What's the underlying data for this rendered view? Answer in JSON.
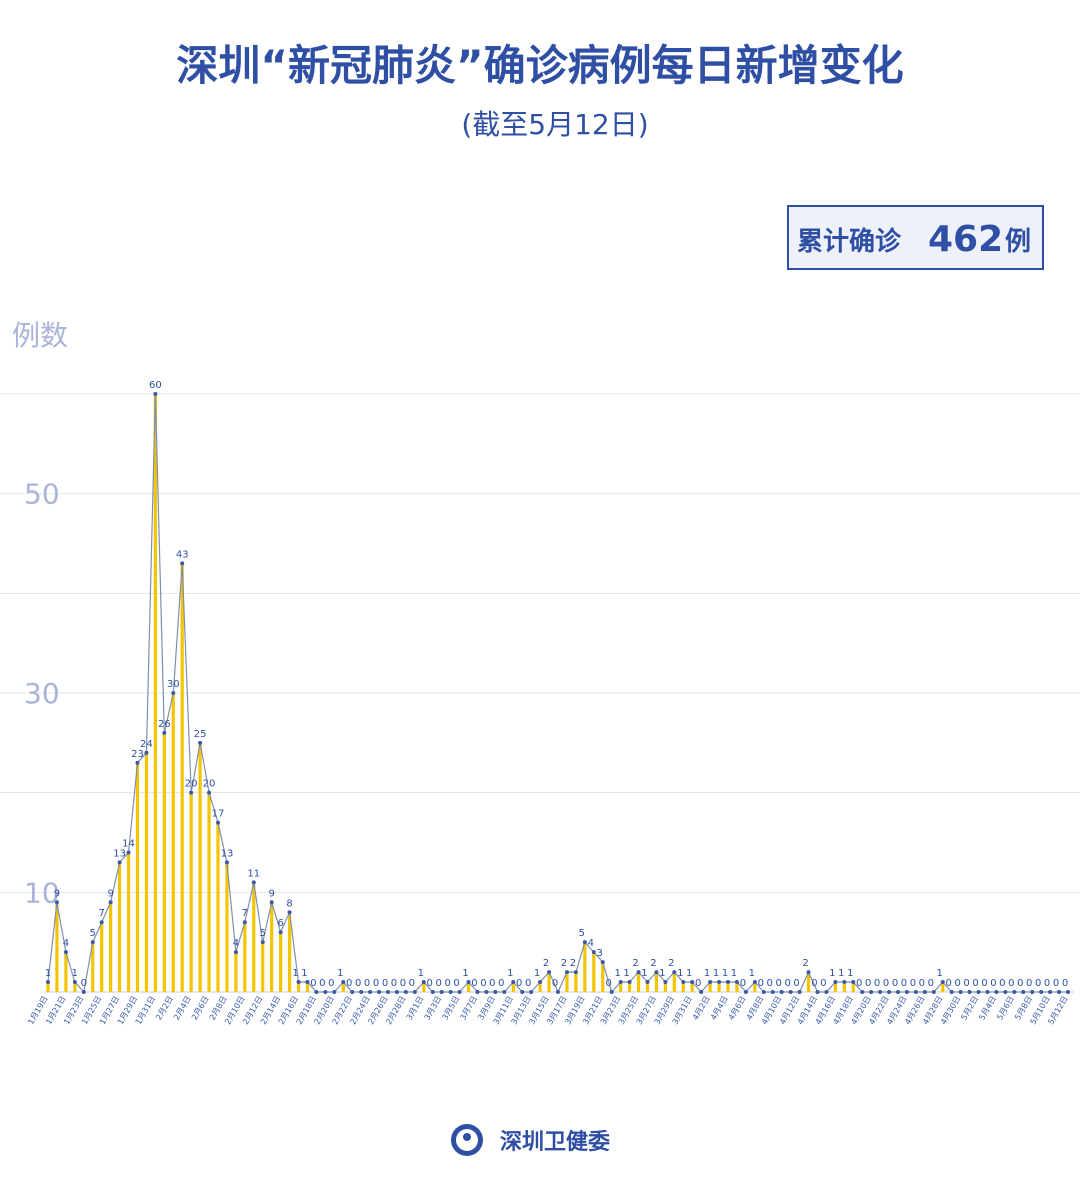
{
  "chart_data": {
    "type": "line-bar",
    "title": "深圳“新冠肺炎”确诊病例每日新增变化",
    "subtitle": "(截至5月12日)",
    "total_prefix": "累计确诊",
    "total_value": "462",
    "total_suffix": "例",
    "y_label": "例数",
    "source": "深圳卫健委",
    "categories": [
      "1月19日",
      null,
      "1月21日",
      null,
      "1月23日",
      null,
      "1月25日",
      null,
      "1月27日",
      null,
      "1月29日",
      null,
      "1月31日",
      null,
      "2月2日",
      null,
      "2月4日",
      null,
      "2月6日",
      null,
      "2月8日",
      null,
      "2月10日",
      null,
      "2月12日",
      null,
      "2月14日",
      null,
      "2月16日",
      null,
      "2月18日",
      null,
      "2月20日",
      null,
      "2月22日",
      null,
      "2月24日",
      null,
      "2月26日",
      null,
      "2月28日",
      null,
      "3月1日",
      null,
      "3月3日",
      null,
      "3月5日",
      null,
      "3月7日",
      null,
      "3月9日",
      null,
      "3月11日",
      null,
      "3月13日",
      null,
      "3月15日",
      null,
      "3月17日",
      null,
      "3月19日",
      null,
      "3月21日",
      null,
      "3月23日",
      null,
      "3月25日",
      null,
      "3月27日",
      null,
      "3月29日",
      null,
      "3月31日",
      null,
      "4月2日",
      null,
      "4月4日",
      null,
      "4月6日",
      null,
      "4月8日",
      null,
      "4月10日",
      null,
      "4月12日",
      null,
      "4月14日",
      null,
      "4月16日",
      null,
      "4月18日",
      null,
      "4月20日",
      null,
      "4月22日",
      null,
      "4月24日",
      null,
      "4月26日",
      null,
      "4月28日",
      null,
      "4月30日",
      null,
      "5月2日",
      null,
      "5月4日",
      null,
      "5月6日",
      null,
      "5月8日",
      null,
      "5月10日",
      null,
      "5月12日"
    ],
    "values": [
      1,
      9,
      4,
      1,
      0,
      5,
      7,
      9,
      13,
      14,
      23,
      24,
      60,
      26,
      30,
      43,
      20,
      25,
      20,
      17,
      13,
      4,
      7,
      11,
      5,
      9,
      6,
      8,
      1,
      1,
      0,
      0,
      0,
      1,
      0,
      0,
      0,
      0,
      0,
      0,
      0,
      0,
      1,
      0,
      0,
      0,
      0,
      1,
      0,
      0,
      0,
      0,
      1,
      0,
      0,
      1,
      2,
      0,
      2,
      2,
      5,
      4,
      3,
      0,
      1,
      1,
      2,
      1,
      2,
      1,
      2,
      1,
      1,
      0,
      1,
      1,
      1,
      1,
      0,
      1,
      0,
      0,
      0,
      0,
      0,
      2,
      0,
      0,
      1,
      1,
      1,
      0,
      0,
      0,
      0,
      0,
      0,
      0,
      0,
      0,
      1,
      0,
      0,
      0,
      0,
      0,
      0,
      0,
      0,
      0,
      0,
      0,
      0,
      0,
      0
    ],
    "bar_color": "#f2c500",
    "line_color": "#7f8fae",
    "point_color": "#3a5aa8",
    "ylim": [
      0,
      60
    ],
    "yticks": [
      10,
      30,
      50
    ],
    "ygrid": [
      20,
      40,
      60
    ],
    "grid": true
  }
}
